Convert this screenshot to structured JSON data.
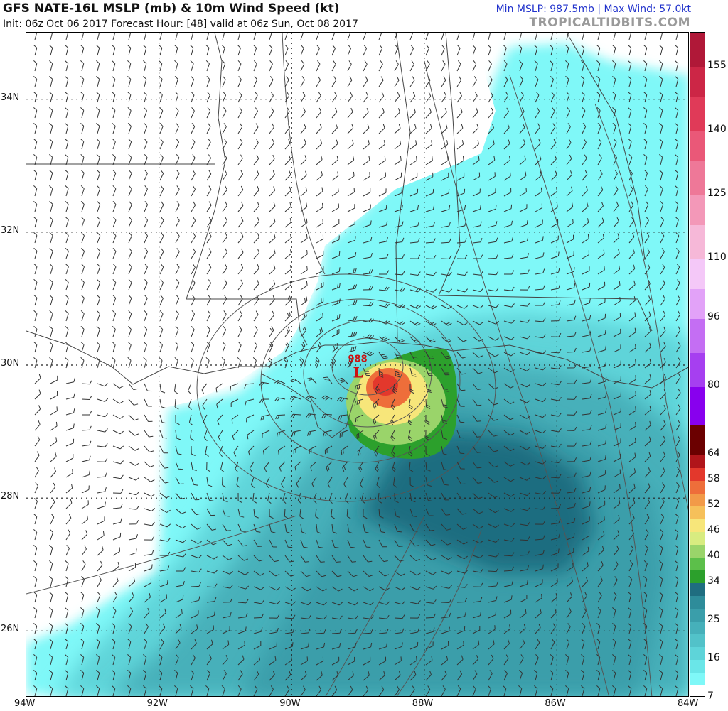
{
  "header": {
    "title": "GFS NATE-16L MSLP (mb) & 10m Wind Speed (kt)",
    "subtitle": "Init: 06z Oct 06 2017   Forecast Hour: [48]   valid at 06z Sun, Oct 08 2017",
    "stats": "Min MSLP: 987.5mb | Max Wind: 57.0kt",
    "brand": "TROPICALTIDBITS.COM"
  },
  "map": {
    "lon_range": [
      -94,
      -84
    ],
    "lat_range": [
      25,
      35
    ],
    "lon_labels": [
      "94W",
      "92W",
      "90W",
      "88W",
      "86W",
      "84W"
    ],
    "lat_labels": [
      "34N",
      "32N",
      "30N",
      "28N",
      "26N"
    ],
    "storm": {
      "symbol": "L",
      "pressure_label": "988",
      "lon": -89.0,
      "lat": 29.9,
      "symbol_color": "#cc1111"
    }
  },
  "colorbar": {
    "ticks": [
      "155",
      "140",
      "125",
      "110",
      "96",
      "80",
      "64",
      "58",
      "52",
      "46",
      "40",
      "34",
      "25",
      "16",
      "7"
    ],
    "stops": [
      7,
      10,
      13,
      16,
      19,
      22,
      25,
      28,
      31,
      34,
      37,
      40,
      43,
      46,
      49,
      52,
      55,
      58,
      61,
      64,
      71,
      80,
      88,
      96,
      103,
      110,
      118,
      125,
      133,
      140,
      148,
      155,
      163
    ],
    "colors": [
      "#ffffff",
      "#7ff8f8",
      "#6ae6e8",
      "#5ed4d9",
      "#52c2c9",
      "#46b0ba",
      "#3a9eaa",
      "#2e8c9a",
      "#1f6d80",
      "#2ca02c",
      "#5cbf4a",
      "#9ad46a",
      "#d8ec80",
      "#f7e67a",
      "#f6c05a",
      "#f29a48",
      "#ee6e3a",
      "#e3382c",
      "#b0151a",
      "#6b0000",
      "#8800ee",
      "#a63ff0",
      "#c46ef3",
      "#e2a2f8",
      "#f4c8f8",
      "#f6b8d8",
      "#f398b8",
      "#ee7898",
      "#ea5878",
      "#e03a58",
      "#cc2646",
      "#b01838"
    ]
  }
}
